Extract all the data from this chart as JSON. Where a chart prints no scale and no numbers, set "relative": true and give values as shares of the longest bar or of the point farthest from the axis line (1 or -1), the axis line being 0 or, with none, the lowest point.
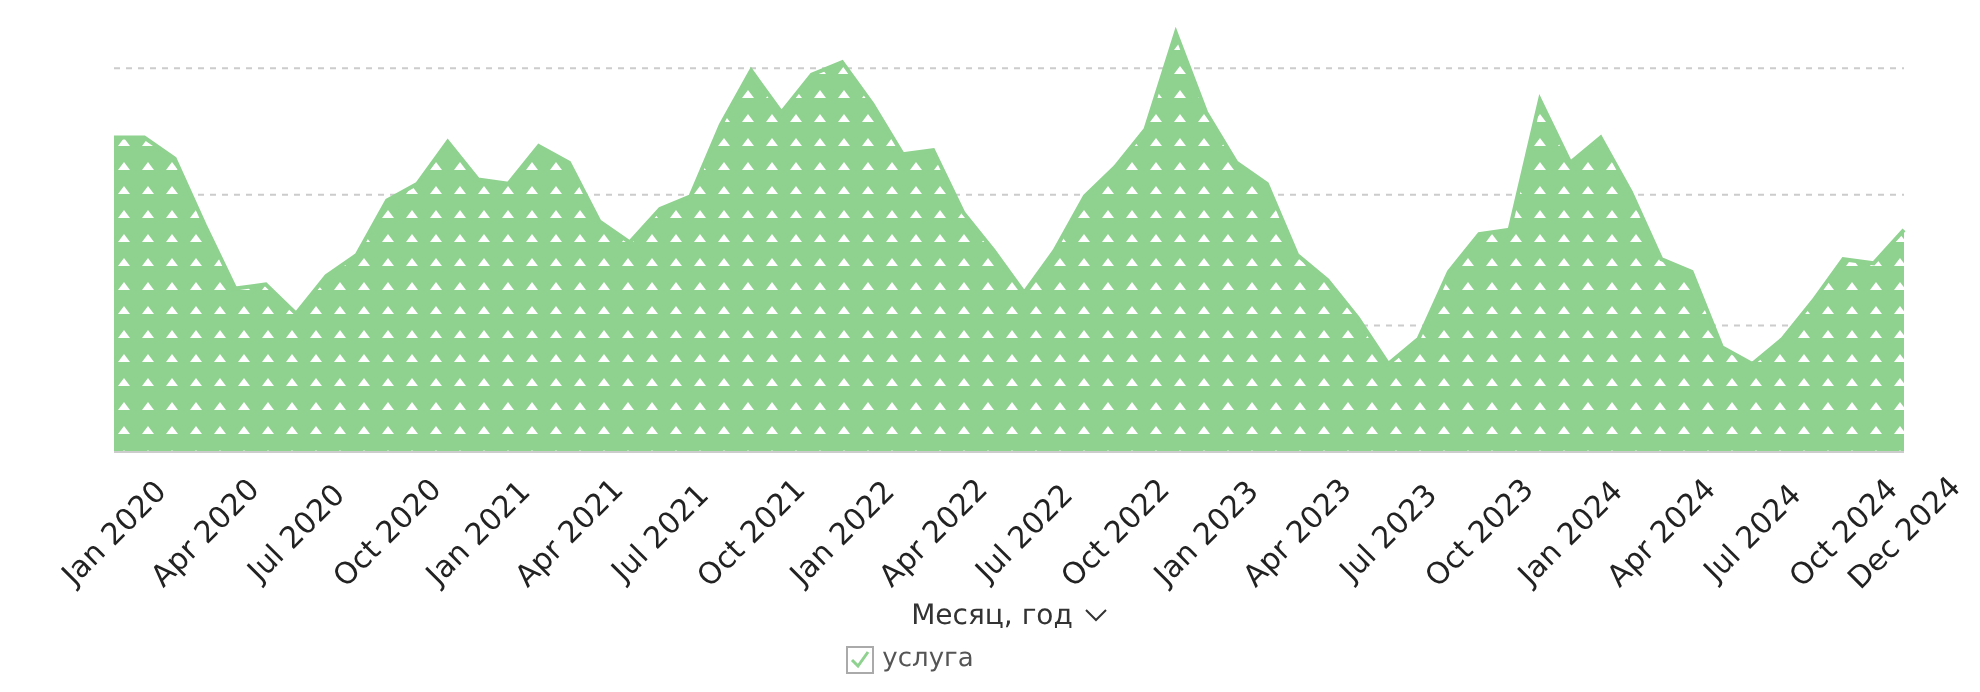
{
  "chart_data": {
    "type": "area",
    "relative": true,
    "xlabel": "Месяц, год",
    "legend": "bottom",
    "grid": "y",
    "categories": [
      "Jan 2020",
      null,
      null,
      "Apr 2020",
      null,
      null,
      "Jul 2020",
      null,
      null,
      "Oct 2020",
      null,
      null,
      "Jan 2021",
      null,
      null,
      "Apr 2021",
      null,
      null,
      "Jul 2021",
      null,
      null,
      "Oct 2021",
      null,
      null,
      "Jan 2022",
      null,
      null,
      "Apr 2022",
      null,
      null,
      "Jul 2022",
      null,
      null,
      "Oct 2022",
      null,
      null,
      "Jan 2023",
      null,
      null,
      "Apr 2023",
      null,
      null,
      "Jul 2023",
      null,
      null,
      "Oct 2023",
      null,
      null,
      "Jan 2024",
      null,
      null,
      "Apr 2024",
      null,
      null,
      "Jul 2024",
      null,
      null,
      "Oct 2024",
      null,
      "Dec 2024"
    ],
    "series": [
      {
        "name": "услуга",
        "color": "#8fd18f",
        "values": [
          0.75,
          0.75,
          0.7,
          0.54,
          0.39,
          0.4,
          0.33,
          0.42,
          0.47,
          0.6,
          0.64,
          0.74,
          0.65,
          0.64,
          0.73,
          0.69,
          0.55,
          0.5,
          0.58,
          0.61,
          0.78,
          0.91,
          0.81,
          0.9,
          0.93,
          0.83,
          0.71,
          0.72,
          0.57,
          0.48,
          0.38,
          0.48,
          0.61,
          0.68,
          0.77,
          1,
          0.81,
          0.69,
          0.64,
          0.47,
          0.41,
          0.32,
          0.21,
          0.27,
          0.43,
          0.52,
          0.53,
          0.84,
          0.69,
          0.75,
          0.62,
          0.46,
          0.43,
          0.25,
          0.21,
          0.27,
          0.36,
          0.46,
          0.45,
          0.53
        ]
      }
    ]
  }
}
